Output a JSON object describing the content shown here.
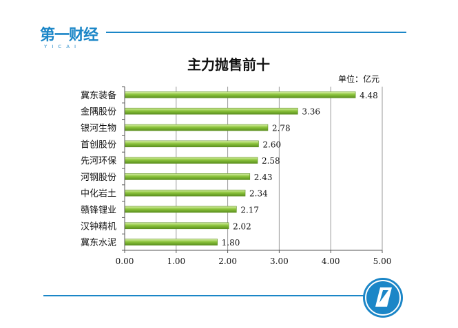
{
  "brand": {
    "name": "第一财经",
    "sub": "YICAI"
  },
  "chart_data": {
    "type": "bar",
    "orientation": "horizontal",
    "title": "主力抛售前十",
    "unit_label": "单位：亿元",
    "categories": [
      "冀东装备",
      "金隅股份",
      "银河生物",
      "首创股份",
      "先河环保",
      "河钢股份",
      "中化岩土",
      "赣锋锂业",
      "汉钟精机",
      "冀东水泥"
    ],
    "values": [
      4.48,
      3.36,
      2.78,
      2.6,
      2.58,
      2.43,
      2.34,
      2.17,
      2.02,
      1.8
    ],
    "value_labels": [
      "4.48",
      "3.36",
      "2.78",
      "2.60",
      "2.58",
      "2.43",
      "2.34",
      "2.17",
      "2.02",
      "1.80"
    ],
    "xticks": [
      "0.00",
      "1.00",
      "2.00",
      "3.00",
      "4.00",
      "5.00"
    ],
    "xlim": [
      0,
      5
    ],
    "grid": true,
    "bar_color": "#8cc43c"
  }
}
